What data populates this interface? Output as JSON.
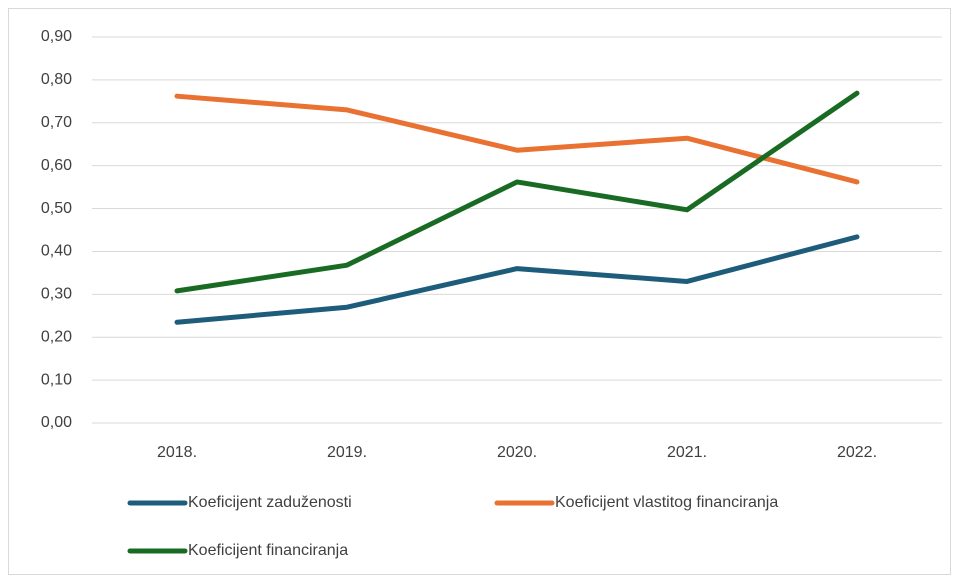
{
  "chart_data": {
    "type": "line",
    "categories": [
      "2018.",
      "2019.",
      "2020.",
      "2021.",
      "2022."
    ],
    "series": [
      {
        "name": "Koeficijent zaduženosti",
        "color": "#1e5c7c",
        "values": [
          0.235,
          0.27,
          0.36,
          0.33,
          0.434
        ]
      },
      {
        "name": "Koeficijent vlastitog financiranja",
        "color": "#e97132",
        "values": [
          0.762,
          0.73,
          0.636,
          0.664,
          0.562
        ]
      },
      {
        "name": "Koeficijent financiranja",
        "color": "#196b24",
        "values": [
          0.308,
          0.368,
          0.562,
          0.497,
          0.769
        ]
      }
    ],
    "ylim": [
      0,
      0.9
    ],
    "yticks": [
      {
        "value": 0,
        "label": "0,00"
      },
      {
        "value": 0.1,
        "label": "0,10"
      },
      {
        "value": 0.2,
        "label": "0,20"
      },
      {
        "value": 0.3,
        "label": "0,30"
      },
      {
        "value": 0.4,
        "label": "0,40"
      },
      {
        "value": 0.5,
        "label": "0,50"
      },
      {
        "value": 0.6,
        "label": "0,60"
      },
      {
        "value": 0.7,
        "label": "0,70"
      },
      {
        "value": 0.8,
        "label": "0,80"
      },
      {
        "value": 0.9,
        "label": "0,90"
      }
    ],
    "grid": true,
    "legend": "bottom"
  }
}
